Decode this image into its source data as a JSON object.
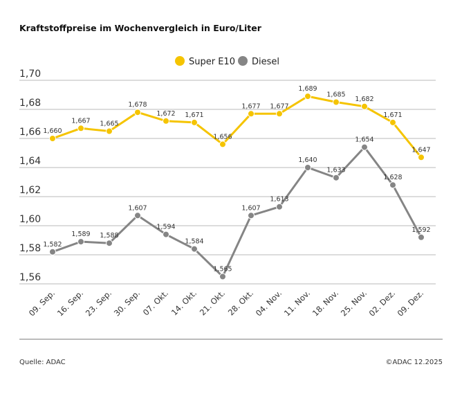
{
  "title": "Kraftstoffpreise im Wochenvergleich in Euro/Liter",
  "source": "Quelle: ADAC",
  "copyright": "©ADAC 12.2025",
  "chart_data": {
    "type": "line",
    "title": "Kraftstoffpreise im Wochenvergleich in Euro/Liter",
    "categories": [
      "09. Sep.",
      "16. Sep.",
      "23. Sep.",
      "30. Sep.",
      "07. Okt.",
      "14. Okt.",
      "21. Okt.",
      "28. Okt.",
      "04. Nov.",
      "11. Nov.",
      "18. Nov.",
      "25. Nov.",
      "02. Dez.",
      "09. Dez."
    ],
    "series": [
      {
        "name": "Super E10",
        "color": "#f5c400",
        "values": [
          1.66,
          1.667,
          1.665,
          1.678,
          1.672,
          1.671,
          1.656,
          1.677,
          1.677,
          1.689,
          1.685,
          1.682,
          1.671,
          1.647
        ],
        "labels": [
          "1,660",
          "1,667",
          "1,665",
          "1,678",
          "1,672",
          "1,671",
          "1,656",
          "1,677",
          "1,677",
          "1,689",
          "1,685",
          "1,682",
          "1,671",
          "1,647"
        ]
      },
      {
        "name": "Diesel",
        "color": "#858585",
        "values": [
          1.582,
          1.589,
          1.588,
          1.607,
          1.594,
          1.584,
          1.565,
          1.607,
          1.613,
          1.64,
          1.633,
          1.654,
          1.628,
          1.592
        ],
        "labels": [
          "1,582",
          "1,589",
          "1,588",
          "1,607",
          "1,594",
          "1,584",
          "1,565",
          "1,607",
          "1,613",
          "1,640",
          "1,633",
          "1,654",
          "1,628",
          "1,592"
        ]
      }
    ],
    "yticks": [
      "1,56",
      "1,58",
      "1,60",
      "1,62",
      "1,64",
      "1,66",
      "1,68",
      "1,70"
    ],
    "ylim": [
      1.56,
      1.7
    ],
    "grid": true,
    "legend": "top-center"
  }
}
